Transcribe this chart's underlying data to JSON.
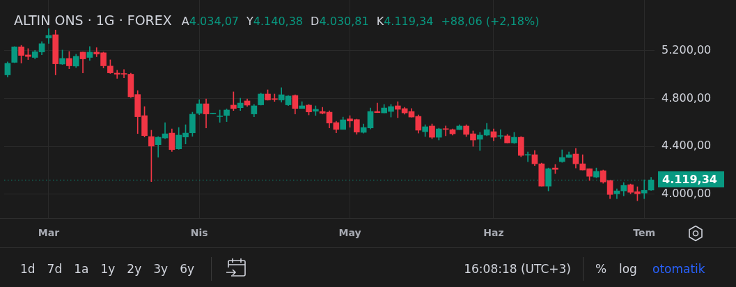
{
  "chart_data": {
    "type": "candlestick",
    "title": "ALTIN ONS · 1G · FOREX",
    "annotations": [
      "A4.034,07",
      "Y4.140,38",
      "D4.030,81",
      "K4.119,34",
      "+88,06 (+2,18%)",
      "1d",
      "7d",
      "1a",
      "1y",
      "2y",
      "3y",
      "6y",
      "16:08:18 (UTC+3)",
      "%",
      "log",
      "otomatik"
    ],
    "categories": [
      null,
      null,
      null,
      null,
      null,
      null,
      "Mar",
      null,
      null,
      null,
      null,
      null,
      null,
      null,
      null,
      null,
      null,
      null,
      null,
      null,
      null,
      null,
      null,
      null,
      null,
      null,
      null,
      null,
      "Nis",
      null,
      null,
      null,
      null,
      null,
      null,
      null,
      null,
      null,
      null,
      null,
      null,
      null,
      null,
      null,
      null,
      null,
      null,
      null,
      null,
      null,
      "May",
      null,
      null,
      null,
      null,
      null,
      null,
      null,
      null,
      null,
      null,
      null,
      null,
      null,
      null,
      null,
      null,
      null,
      null,
      null,
      null,
      "Haz",
      null,
      null,
      null,
      null,
      null,
      null,
      null,
      null,
      null,
      null,
      null,
      null,
      null,
      null,
      null,
      null,
      null,
      null,
      null,
      null,
      null,
      "Tem",
      null
    ],
    "ohlc": [
      [
        4998,
        5107,
        4980,
        5095
      ],
      [
        5103,
        5235,
        5100,
        5233
      ],
      [
        5233,
        5245,
        5097,
        5161
      ],
      [
        5165,
        5218,
        5126,
        5152
      ],
      [
        5144,
        5204,
        5132,
        5192
      ],
      [
        5190,
        5276,
        5167,
        5259
      ],
      [
        5307,
        5385,
        5261,
        5329
      ],
      [
        5334,
        5373,
        4998,
        5091
      ],
      [
        5089,
        5206,
        5085,
        5136
      ],
      [
        5136,
        5194,
        5050,
        5074
      ],
      [
        5072,
        5171,
        5060,
        5154
      ],
      [
        5189,
        5190,
        5015,
        5132
      ],
      [
        5144,
        5235,
        5120,
        5189
      ],
      [
        5189,
        5226,
        5150,
        5173
      ],
      [
        5183,
        5189,
        5056,
        5074
      ],
      [
        5072,
        5124,
        5010,
        5015
      ],
      [
        5013,
        5037,
        4969,
        5004
      ],
      [
        5008,
        5043,
        4974,
        5004
      ],
      [
        5004,
        5013,
        4809,
        4815
      ],
      [
        4834,
        4867,
        4507,
        4648
      ],
      [
        4657,
        4733,
        4478,
        4490
      ],
      [
        4482,
        4535,
        4105,
        4402
      ],
      [
        4414,
        4482,
        4309,
        4476
      ],
      [
        4470,
        4599,
        4463,
        4505
      ],
      [
        4511,
        4546,
        4358,
        4373
      ],
      [
        4379,
        4558,
        4375,
        4494
      ],
      [
        4478,
        4581,
        4420,
        4511
      ],
      [
        4513,
        4686,
        4484,
        4669
      ],
      [
        4677,
        4791,
        4665,
        4756
      ],
      [
        4756,
        4797,
        4554,
        4671
      ],
      [
        4673,
        4675,
        4672,
        4674
      ],
      [
        4649,
        4704,
        4601,
        4651
      ],
      [
        4659,
        4714,
        4607,
        4704
      ],
      [
        4745,
        4856,
        4700,
        4717
      ],
      [
        4723,
        4803,
        4700,
        4762
      ],
      [
        4780,
        4797,
        4735,
        4745
      ],
      [
        4671,
        4751,
        4647,
        4739
      ],
      [
        4747,
        4846,
        4745,
        4838
      ],
      [
        4838,
        4873,
        4786,
        4788
      ],
      [
        4797,
        4838,
        4776,
        4793
      ],
      [
        4788,
        4891,
        4770,
        4832
      ],
      [
        4747,
        4826,
        4741,
        4821
      ],
      [
        4826,
        4832,
        4671,
        4717
      ],
      [
        4717,
        4774,
        4717,
        4739
      ],
      [
        4745,
        4751,
        4663,
        4688
      ],
      [
        4694,
        4739,
        4659,
        4710
      ],
      [
        4692,
        4727,
        4671,
        4677
      ],
      [
        4686,
        4698,
        4554,
        4595
      ],
      [
        4599,
        4610,
        4513,
        4542
      ],
      [
        4542,
        4645,
        4542,
        4622
      ],
      [
        4630,
        4657,
        4560,
        4612
      ],
      [
        4624,
        4628,
        4501,
        4519
      ],
      [
        4517,
        4587,
        4511,
        4558
      ],
      [
        4554,
        4721,
        4546,
        4692
      ],
      [
        4692,
        4762,
        4682,
        4682
      ],
      [
        4680,
        4751,
        4680,
        4721
      ],
      [
        4692,
        4751,
        4645,
        4733
      ],
      [
        4739,
        4774,
        4640,
        4710
      ],
      [
        4716,
        4727,
        4669,
        4680
      ],
      [
        4692,
        4716,
        4645,
        4645
      ],
      [
        4651,
        4663,
        4511,
        4535
      ],
      [
        4523,
        4581,
        4482,
        4564
      ],
      [
        4570,
        4587,
        4464,
        4476
      ],
      [
        4476,
        4552,
        4453,
        4546
      ],
      [
        4546,
        4570,
        4488,
        4542
      ],
      [
        4540,
        4546,
        4494,
        4505
      ],
      [
        4540,
        4581,
        4540,
        4570
      ],
      [
        4570,
        4581,
        4482,
        4500
      ],
      [
        4505,
        4529,
        4400,
        4453
      ],
      [
        4459,
        4517,
        4365,
        4494
      ],
      [
        4494,
        4593,
        4488,
        4540
      ],
      [
        4523,
        4546,
        4447,
        4476
      ],
      [
        4484,
        4540,
        4464,
        4488
      ],
      [
        4488,
        4500,
        4429,
        4429
      ],
      [
        4429,
        4517,
        4424,
        4476
      ],
      [
        4476,
        4482,
        4313,
        4324
      ],
      [
        4326,
        4354,
        4272,
        4330
      ],
      [
        4330,
        4365,
        4239,
        4254
      ],
      [
        4254,
        4260,
        4067,
        4067
      ],
      [
        4067,
        4219,
        4027,
        4213
      ],
      [
        4219,
        4248,
        4172,
        4207
      ],
      [
        4272,
        4371,
        4266,
        4307
      ],
      [
        4307,
        4353,
        4306,
        4330
      ],
      [
        4336,
        4383,
        4219,
        4254
      ],
      [
        4254,
        4330,
        4202,
        4202
      ],
      [
        4213,
        4213,
        4114,
        4149
      ],
      [
        4143,
        4219,
        4137,
        4190
      ],
      [
        4196,
        4202,
        4091,
        4102
      ],
      [
        4114,
        4114,
        3962,
        3997
      ],
      [
        4003,
        4044,
        3962,
        4027
      ],
      [
        4027,
        4097,
        3986,
        4073
      ],
      [
        4079,
        4085,
        4003,
        4015
      ],
      [
        4021,
        4062,
        3945,
        4003
      ],
      [
        4009,
        4120,
        3962,
        4032
      ],
      [
        4034.07,
        4140.38,
        4030.81,
        4119.34
      ]
    ],
    "colors": [
      "#089981",
      "#089981",
      "#f23645",
      "#f23645",
      "#089981",
      "#089981",
      "#089981",
      "#f23645",
      "#089981",
      "#f23645",
      "#089981",
      "#f23645",
      "#089981",
      "#f23645",
      "#f23645",
      "#f23645",
      "#f23645",
      "#f23645",
      "#f23645",
      "#f23645",
      "#f23645",
      "#f23645",
      "#089981",
      "#089981",
      "#f23645",
      "#089981",
      "#089981",
      "#089981",
      "#089981",
      "#f23645",
      "#089981",
      "#089981",
      "#089981",
      "#f23645",
      "#089981",
      "#f23645",
      "#089981",
      "#089981",
      "#f23645",
      "#f23645",
      "#089981",
      "#089981",
      "#f23645",
      "#089981",
      "#f23645",
      "#089981",
      "#f23645",
      "#f23645",
      "#f23645",
      "#089981",
      "#f23645",
      "#f23645",
      "#089981",
      "#089981",
      "#f23645",
      "#089981",
      "#089981",
      "#f23645",
      "#f23645",
      "#f23645",
      "#f23645",
      "#089981",
      "#f23645",
      "#089981",
      "#f23645",
      "#f23645",
      "#089981",
      "#f23645",
      "#f23645",
      "#089981",
      "#089981",
      "#f23645",
      "#089981",
      "#f23645",
      "#089981",
      "#f23645",
      "#089981",
      "#f23645",
      "#f23645",
      "#089981",
      "#f23645",
      "#089981",
      "#089981",
      "#f23645",
      "#f23645",
      "#f23645",
      "#089981",
      "#f23645",
      "#f23645",
      "#089981",
      "#089981",
      "#f23645",
      "#f23645",
      "#089981",
      "#089981"
    ],
    "ylim": [
      3800,
      5625
    ],
    "yticks": [
      {
        "value": 4000,
        "label": "4.000,00"
      },
      {
        "value": 4400,
        "label": "4.400,00"
      },
      {
        "value": 4800,
        "label": "4.800,00"
      },
      {
        "value": 5200,
        "label": "5.200,00"
      }
    ],
    "ref_lines": [
      {
        "axis": "y",
        "value": 4119.34,
        "label": "4.119,34",
        "color": "#089981",
        "line_style": "dotted"
      }
    ],
    "grid": true
  }
}
